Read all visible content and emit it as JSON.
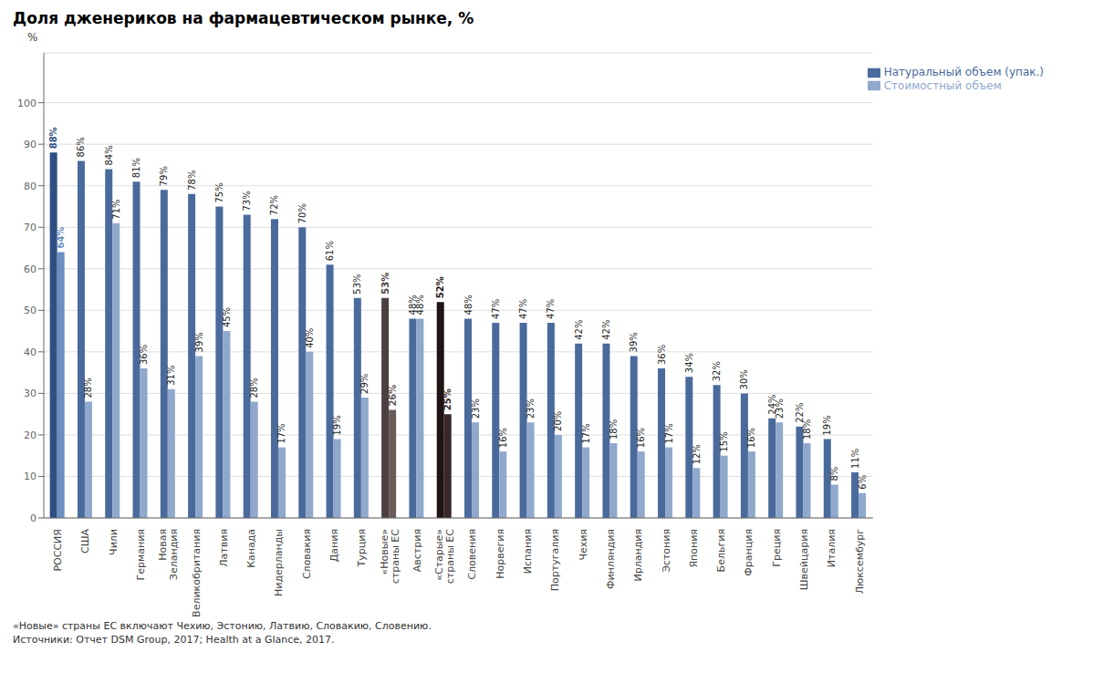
{
  "chart_data": {
    "type": "bar",
    "title": "Доля дженериков на фармацевтическом рынке, %",
    "ylabel": "%",
    "annotations": [
      "«Новые» страны ЕС включают Чехию, Эстонию, Латвию, Словакию, Словению.",
      "Источники: Отчет DSM Group, 2017; Health at a Glance, 2017."
    ],
    "categories": [
      "РОССИЯ",
      "США",
      "Чили",
      "Германия",
      "Новая\nЗеландия",
      "Великобритания",
      "Латвия",
      "Канада",
      "Нидерланды",
      "Словакия",
      "Дания",
      "Турция",
      "«Новые»\nстраны ЕС",
      "Австрия",
      "«Старые»\nстраны ЕС",
      "Словения",
      "Норвегия",
      "Испания",
      "Португалия",
      "Чехия",
      "Финляндия",
      "Ирландия",
      "Эстония",
      "Япония",
      "Бельгия",
      "Франция",
      "Греция",
      "Швейцария",
      "Италия",
      "Люксембург"
    ],
    "series": [
      {
        "name": "Натуральный объем (упак.)",
        "color": "#4a6a9c",
        "colors": [
          "#2d4f82",
          "#4a6a9c",
          "#4a6a9c",
          "#4a6a9c",
          "#4a6a9c",
          "#4a6a9c",
          "#4a6a9c",
          "#4a6a9c",
          "#4a6a9c",
          "#4a6a9c",
          "#4a6a9c",
          "#4a6a9c",
          "#4a4040",
          "#4a6a9c",
          "#1e1414",
          "#4a6a9c",
          "#4a6a9c",
          "#4a6a9c",
          "#4a6a9c",
          "#4a6a9c",
          "#4a6a9c",
          "#4a6a9c",
          "#4a6a9c",
          "#4a6a9c",
          "#4a6a9c",
          "#4a6a9c",
          "#4a6a9c",
          "#4a6a9c",
          "#4a6a9c",
          "#4a6a9c"
        ],
        "values": [
          88,
          86,
          84,
          81,
          79,
          78,
          75,
          73,
          72,
          70,
          61,
          53,
          53,
          48,
          52,
          48,
          47,
          47,
          47,
          42,
          42,
          39,
          36,
          34,
          32,
          30,
          24,
          22,
          19,
          11
        ],
        "value_labels": [
          "88%",
          "86%",
          "84%",
          "81%",
          "79%",
          "78%",
          "75%",
          "73%",
          "72%",
          "70%",
          "61%",
          "53%",
          "53%",
          "48%",
          "52%",
          "48%",
          "47%",
          "47%",
          "47%",
          "42%",
          "42%",
          "39%",
          "36%",
          "34%",
          "32%",
          "30%",
          "24%",
          "22%",
          "19%",
          "11%"
        ]
      },
      {
        "name": "Стоимостный объем",
        "color": "#8fa8cc",
        "colors": [
          "#6b8fc0",
          "#8fa8cc",
          "#8fa8cc",
          "#8fa8cc",
          "#8fa8cc",
          "#8fa8cc",
          "#8fa8cc",
          "#8fa8cc",
          "#8fa8cc",
          "#8fa8cc",
          "#8fa8cc",
          "#8fa8cc",
          "#6a5a5a",
          "#8fa8cc",
          "#3a2828",
          "#8fa8cc",
          "#8fa8cc",
          "#8fa8cc",
          "#8fa8cc",
          "#8fa8cc",
          "#8fa8cc",
          "#8fa8cc",
          "#8fa8cc",
          "#8fa8cc",
          "#8fa8cc",
          "#8fa8cc",
          "#8fa8cc",
          "#8fa8cc",
          "#8fa8cc",
          "#8fa8cc"
        ],
        "values": [
          64,
          28,
          71,
          36,
          31,
          39,
          45,
          28,
          17,
          40,
          19,
          29,
          26,
          48,
          25,
          23,
          16,
          23,
          20,
          17,
          18,
          16,
          17,
          12,
          15,
          16,
          23,
          18,
          8,
          6
        ],
        "value_labels": [
          "64%",
          "28%",
          "71%",
          "36%",
          "31%",
          "39%",
          "45%",
          "28%",
          "17%",
          "40%",
          "19%",
          "29%",
          "26%",
          "48%",
          "25%",
          "23%",
          "16%",
          "23%",
          "20%",
          "17%",
          "18%",
          "16%",
          "17%",
          "12%",
          "15%",
          "16%",
          "23%",
          "18%",
          "8%",
          "6%"
        ]
      }
    ],
    "ylim": [
      0,
      112
    ],
    "yticks": [
      0,
      10,
      20,
      30,
      40,
      50,
      60,
      70,
      80,
      90,
      100
    ],
    "grid": true,
    "legend": "upper right",
    "data_labels": true
  }
}
